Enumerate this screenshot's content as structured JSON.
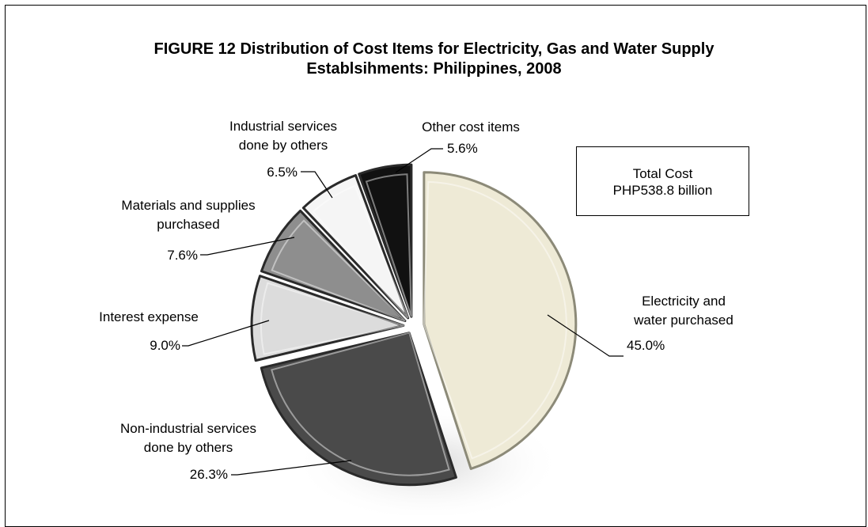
{
  "chart_data": {
    "type": "pie",
    "title": [
      "FIGURE 12 Distribution of  Cost Items for Electricity, Gas and Water Supply",
      "Establsihments: Philippines, 2008"
    ],
    "annotation": [
      "Total  Cost",
      "PHP538.8 billion"
    ],
    "slices": [
      {
        "label": [
          "Electricity and",
          "water purchased"
        ],
        "value": 45.0,
        "value_label": "45.0%",
        "color": "#eeead6"
      },
      {
        "label": [
          "Non-industrial services",
          "done by others"
        ],
        "value": 26.3,
        "value_label": "26.3%",
        "color": "#4a4a4a"
      },
      {
        "label": [
          "Interest expense"
        ],
        "value": 9.0,
        "value_label": "9.0%",
        "color": "#dcdcdc"
      },
      {
        "label": [
          "Materials and supplies",
          "purchased"
        ],
        "value": 7.6,
        "value_label": "7.6%",
        "color": "#8e8e8e"
      },
      {
        "label": [
          "Industrial services",
          "done by others"
        ],
        "value": 6.5,
        "value_label": "6.5%",
        "color": "#f5f5f5"
      },
      {
        "label": [
          "Other cost items"
        ],
        "value": 5.6,
        "value_label": "5.6%",
        "color": "#111111"
      }
    ]
  }
}
